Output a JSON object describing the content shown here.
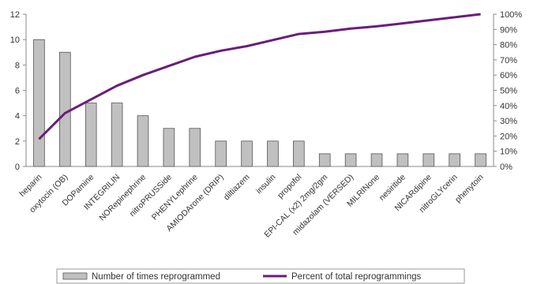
{
  "chart_data": {
    "type": "bar",
    "categories": [
      "heparin",
      "oxytocin (OB)",
      "DOPamine",
      "INTEGRILIN",
      "NORepinephrine",
      "nitroPRUSSide",
      "PHENYLephrine",
      "AMIODArone (DRIP)",
      "diltiazem",
      "insulin",
      "propofol",
      "EPI-CAL (x2) 2mg/2gm",
      "midazolam (VERSED)",
      "MILRINone",
      "nesiritide",
      "NICARdipine",
      "nitroGLYcerin",
      "phenytoin"
    ],
    "series": [
      {
        "name": "Number of times reprogrammed",
        "type": "bar",
        "axis": "left",
        "color": "#c0c0c0",
        "values": [
          10,
          9,
          5,
          5,
          4,
          3,
          3,
          2,
          2,
          2,
          2,
          1,
          1,
          1,
          1,
          1,
          1,
          1
        ]
      },
      {
        "name": "Percent of total reprogrammings",
        "type": "line",
        "axis": "right",
        "color": "#6a1d7a",
        "values": [
          18,
          35,
          44,
          53,
          60,
          66,
          72,
          76,
          79,
          83,
          87,
          88.5,
          90.5,
          92,
          94,
          96,
          98,
          100
        ]
      }
    ],
    "left_axis": {
      "min": 0,
      "max": 12,
      "ticks": [
        0,
        2,
        4,
        6,
        8,
        10,
        12
      ]
    },
    "right_axis": {
      "min": 0,
      "max": 100,
      "ticks": [
        "0%",
        "10%",
        "20%",
        "30%",
        "40%",
        "50%",
        "60%",
        "70%",
        "80%",
        "90%",
        "100%"
      ]
    },
    "grid": false,
    "legend_position": "bottom"
  }
}
